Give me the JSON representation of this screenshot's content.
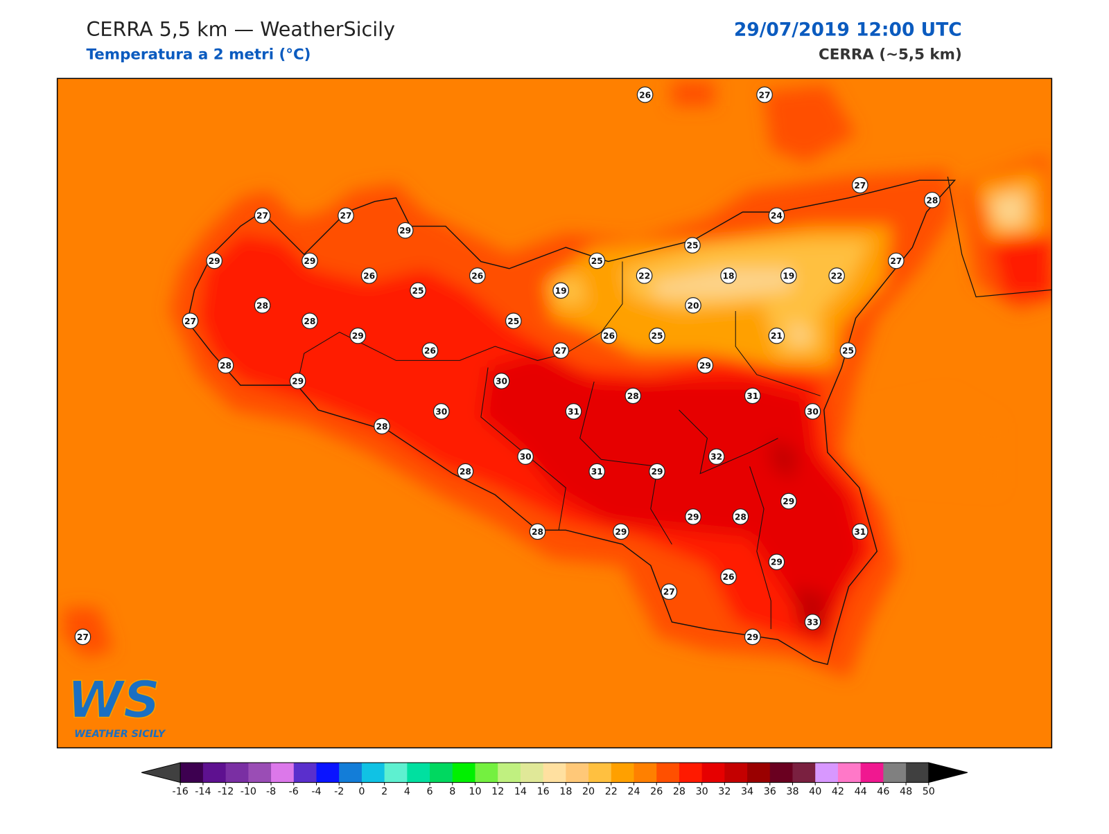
{
  "header": {
    "title": "CERRA 5,5 km — WeatherSicily",
    "subtitle": "Temperatura a 2 metri (°C)",
    "datetime": "29/07/2019 12:00 UTC",
    "model": "CERRA (~5,5 km)"
  },
  "stations": [
    26,
    27,
    27,
    28,
    27,
    27,
    29,
    24,
    25,
    29,
    29,
    26,
    26,
    25,
    22,
    18,
    19,
    22,
    27,
    25,
    19,
    28,
    20,
    27,
    28,
    25,
    29,
    26,
    25,
    21,
    26,
    27,
    25,
    28,
    29,
    29,
    30,
    28,
    31,
    30,
    31,
    30,
    28,
    30,
    32,
    28,
    31,
    29,
    29,
    29,
    28,
    31,
    28,
    29,
    29,
    26,
    27,
    33,
    29,
    27
  ],
  "colorbar": {
    "ticks": [
      -16,
      -14,
      -12,
      -10,
      -8,
      -6,
      -4,
      -2,
      0,
      2,
      4,
      6,
      8,
      10,
      12,
      14,
      16,
      18,
      20,
      22,
      24,
      26,
      28,
      30,
      32,
      34,
      36,
      38,
      40,
      42,
      44,
      46,
      48,
      50
    ],
    "colors": [
      "#3d0050",
      "#5e1190",
      "#7a2fa3",
      "#9a4db5",
      "#dc78ea",
      "#5a2fcc",
      "#0a14ff",
      "#137dd8",
      "#10c2e4",
      "#5ef0d0",
      "#00e0a0",
      "#00d860",
      "#00f000",
      "#74f040",
      "#c0f080",
      "#e0e898",
      "#ffe0a0",
      "#ffc878",
      "#ffc040",
      "#ffa000",
      "#ff8000",
      "#ff5000",
      "#ff1a00",
      "#e60000",
      "#c40000",
      "#9a0000",
      "#6a0020",
      "#7a2040",
      "#d898ff",
      "#ff78c8",
      "#f01890",
      "#808080",
      "#404040"
    ],
    "under": "#404040",
    "over": "#000000"
  },
  "logo": {
    "mark": "WS",
    "name": "WEATHER SICILY"
  }
}
